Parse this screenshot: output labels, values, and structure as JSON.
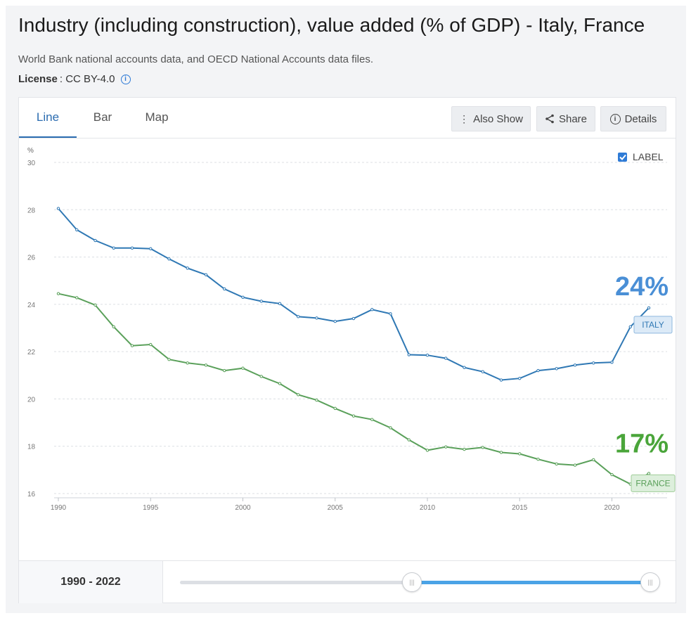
{
  "header": {
    "title": "Industry (including construction), value added (% of GDP) - Italy, France",
    "source": "World Bank national accounts data, and OECD National Accounts data files.",
    "license_label": "License",
    "license_value": ": CC BY-4.0"
  },
  "tabs": [
    {
      "label": "Line"
    },
    {
      "label": "Bar"
    },
    {
      "label": "Map"
    }
  ],
  "toolbar": {
    "also_show": "Also Show",
    "share": "Share",
    "details": "Details"
  },
  "controls": {
    "label_toggle": "LABEL",
    "range_text": "1990 - 2022"
  },
  "colors": {
    "italy": "#2f78b4",
    "france": "#5aa05a",
    "italy_big": "#4a8fd6",
    "france_big": "#4aa53a"
  },
  "chart_data": {
    "type": "line",
    "title": "Industry (including construction), value added (% of GDP) - Italy, France",
    "ylabel": "%",
    "xlabel": "",
    "ylim": [
      16,
      30
    ],
    "xlim": [
      1990,
      2022
    ],
    "yticks": [
      "16",
      "18",
      "20",
      "22",
      "24",
      "26",
      "28",
      "30"
    ],
    "xticks": [
      "1990",
      "1995",
      "2000",
      "2005",
      "2010",
      "2015",
      "2020"
    ],
    "grid": true,
    "x": [
      1990,
      1991,
      1992,
      1993,
      1994,
      1995,
      1996,
      1997,
      1998,
      1999,
      2000,
      2001,
      2002,
      2003,
      2004,
      2005,
      2006,
      2007,
      2008,
      2009,
      2010,
      2011,
      2012,
      2013,
      2014,
      2015,
      2016,
      2017,
      2018,
      2019,
      2020,
      2021,
      2022
    ],
    "series": [
      {
        "name": "ITALY",
        "label": "ITALY",
        "big_label": "24%",
        "values": [
          28.05,
          27.15,
          26.7,
          26.38,
          26.38,
          26.35,
          25.92,
          25.53,
          25.25,
          24.65,
          24.3,
          24.13,
          24.03,
          23.48,
          23.42,
          23.28,
          23.4,
          23.78,
          23.6,
          21.87,
          21.85,
          21.72,
          21.33,
          21.15,
          20.8,
          20.87,
          21.2,
          21.28,
          21.43,
          21.52,
          21.55,
          23.05,
          23.85
        ]
      },
      {
        "name": "FRANCE",
        "label": "FRANCE",
        "big_label": "17%",
        "values": [
          24.45,
          24.28,
          23.97,
          23.05,
          22.25,
          22.3,
          21.67,
          21.52,
          21.43,
          21.2,
          21.3,
          20.95,
          20.65,
          20.18,
          19.95,
          19.6,
          19.28,
          19.13,
          18.78,
          18.27,
          17.83,
          17.97,
          17.87,
          17.95,
          17.74,
          17.68,
          17.45,
          17.25,
          17.2,
          17.43,
          16.8,
          16.4,
          16.85
        ]
      }
    ]
  }
}
